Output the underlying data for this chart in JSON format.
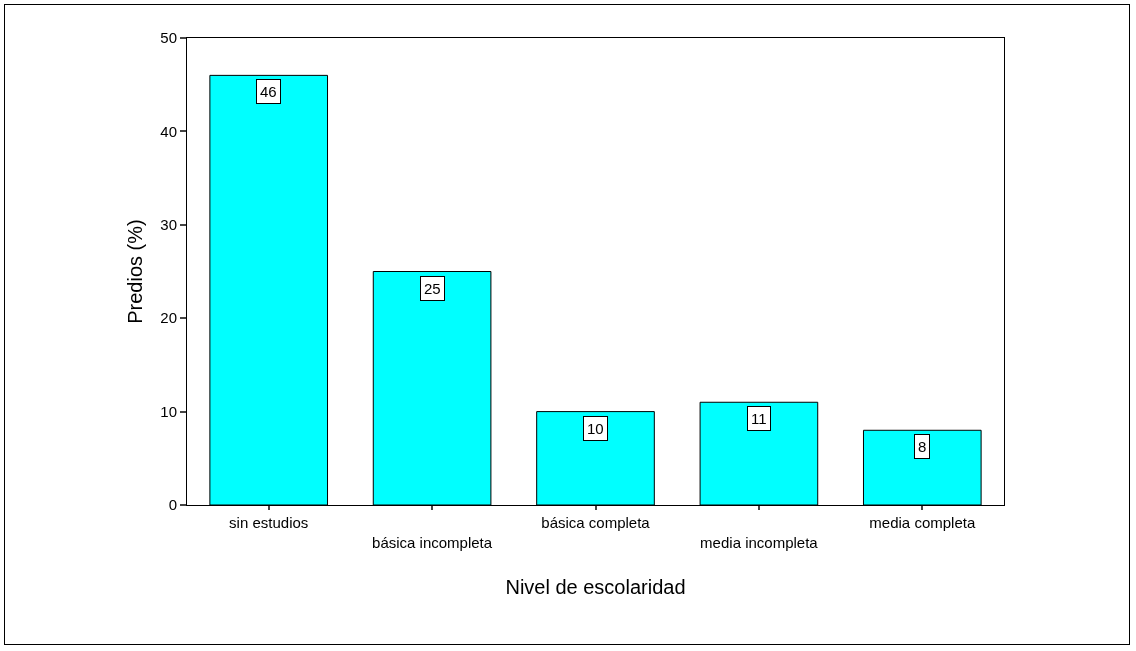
{
  "chart_data": {
    "type": "bar",
    "xlabel": "Nivel de escolaridad",
    "ylabel": "Predios (%)",
    "categories": [
      "sin estudios",
      "básica incompleta",
      "básica completa",
      "media incompleta",
      "media completa"
    ],
    "values": [
      46,
      25,
      10,
      11,
      8
    ],
    "color": "#00ffff",
    "data_labels": true,
    "ylim": [
      0,
      50
    ],
    "yticks": [
      0,
      10,
      20,
      30,
      40,
      50
    ],
    "grid": false
  }
}
